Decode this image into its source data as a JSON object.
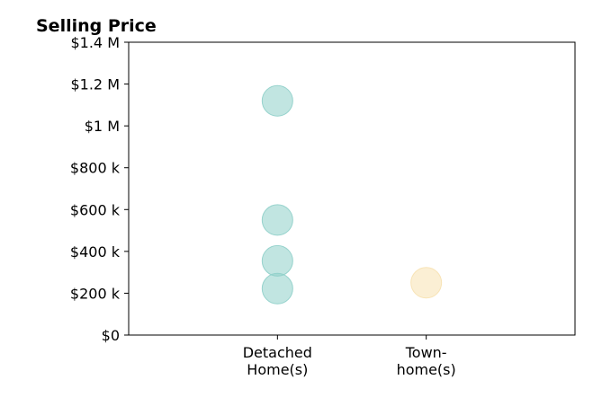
{
  "chart_data": {
    "type": "scatter",
    "title": "Selling Price",
    "xlabel": "",
    "ylabel": "",
    "categories": [
      "Detached Home(s)",
      "Town- home(s)"
    ],
    "category_label_lines": [
      [
        "Detached",
        "Home(s)"
      ],
      [
        "Town-",
        "home(s)"
      ]
    ],
    "series": [
      {
        "category": "Detached Home(s)",
        "values": [
          1120000,
          550000,
          355000,
          222000
        ],
        "color": "#8ecfc9"
      },
      {
        "category": "Town- home(s)",
        "values": [
          250000
        ],
        "color": "#f7e1b0"
      }
    ],
    "ylim": [
      0,
      1400000
    ],
    "xlim": [
      0,
      3
    ],
    "category_positions": [
      1,
      2
    ],
    "y_ticks": [
      0,
      200000,
      400000,
      600000,
      800000,
      1000000,
      1200000,
      1400000
    ],
    "y_tick_labels": [
      "$0",
      "$200 k",
      "$400 k",
      "$600 k",
      "$800 k",
      "$1 M",
      "$1.2 M",
      "$1.4 M"
    ],
    "grid": false,
    "legend": "none"
  }
}
